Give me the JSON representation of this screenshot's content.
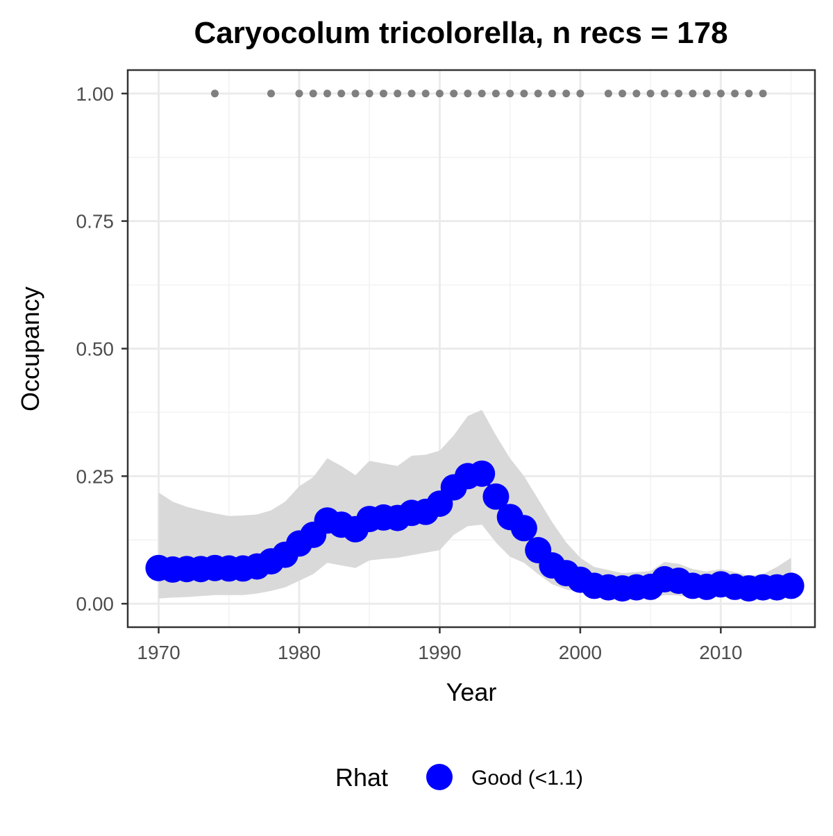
{
  "chart_data": {
    "type": "line",
    "title": "Caryocolum tricolorella, n recs = 178",
    "xlabel": "Year",
    "ylabel": "Occupancy",
    "xlim": [
      1967.8,
      2016.7
    ],
    "ylim": [
      -0.046,
      1.046
    ],
    "x_ticks": [
      1970,
      1980,
      1990,
      2000,
      2010
    ],
    "x_tick_labels": [
      "1970",
      "1980",
      "1990",
      "2000",
      "2010"
    ],
    "y_ticks": [
      0,
      0.25,
      0.5,
      0.75,
      1.0
    ],
    "y_tick_labels": [
      "0.00",
      "0.25",
      "0.50",
      "0.75",
      "1.00"
    ],
    "grid": true,
    "legend_position": "bottom",
    "legend_title": "Rhat",
    "legend_label": "Good (<1.1)",
    "colors": {
      "points": "#0000ff",
      "ribbon": "#d9d9d9",
      "record_points": "#7f7f7f"
    },
    "series": [
      {
        "name": "Good (<1.1)",
        "x": [
          1970,
          1971,
          1972,
          1973,
          1974,
          1975,
          1976,
          1977,
          1978,
          1979,
          1980,
          1981,
          1982,
          1983,
          1984,
          1985,
          1986,
          1987,
          1988,
          1989,
          1990,
          1991,
          1992,
          1993,
          1994,
          1995,
          1996,
          1997,
          1998,
          1999,
          2000,
          2001,
          2002,
          2003,
          2004,
          2005,
          2006,
          2007,
          2008,
          2009,
          2010,
          2011,
          2012,
          2013,
          2014,
          2015
        ],
        "y": [
          0.07,
          0.067,
          0.068,
          0.068,
          0.07,
          0.069,
          0.069,
          0.073,
          0.083,
          0.096,
          0.118,
          0.135,
          0.163,
          0.155,
          0.146,
          0.166,
          0.169,
          0.168,
          0.178,
          0.18,
          0.196,
          0.228,
          0.25,
          0.255,
          0.21,
          0.17,
          0.148,
          0.105,
          0.075,
          0.06,
          0.047,
          0.035,
          0.032,
          0.03,
          0.032,
          0.033,
          0.048,
          0.045,
          0.035,
          0.033,
          0.038,
          0.033,
          0.03,
          0.032,
          0.032,
          0.035
        ],
        "lower": [
          0.01,
          0.012,
          0.013,
          0.015,
          0.017,
          0.017,
          0.017,
          0.02,
          0.025,
          0.032,
          0.045,
          0.058,
          0.08,
          0.075,
          0.07,
          0.085,
          0.088,
          0.09,
          0.095,
          0.1,
          0.105,
          0.135,
          0.152,
          0.155,
          0.12,
          0.092,
          0.08,
          0.058,
          0.038,
          0.028,
          0.022,
          0.016,
          0.013,
          0.011,
          0.011,
          0.011,
          0.017,
          0.016,
          0.012,
          0.011,
          0.013,
          0.011,
          0.01,
          0.01,
          0.011,
          0.012
        ],
        "upper": [
          0.218,
          0.2,
          0.19,
          0.183,
          0.177,
          0.172,
          0.173,
          0.175,
          0.183,
          0.2,
          0.23,
          0.248,
          0.285,
          0.27,
          0.252,
          0.28,
          0.275,
          0.27,
          0.29,
          0.292,
          0.3,
          0.33,
          0.368,
          0.38,
          0.33,
          0.285,
          0.25,
          0.205,
          0.16,
          0.12,
          0.09,
          0.072,
          0.066,
          0.06,
          0.062,
          0.064,
          0.082,
          0.078,
          0.068,
          0.063,
          0.068,
          0.062,
          0.055,
          0.058,
          0.072,
          0.09
        ]
      }
    ],
    "record_years": [
      1974,
      1978,
      1980,
      1981,
      1982,
      1983,
      1984,
      1985,
      1986,
      1987,
      1988,
      1989,
      1990,
      1991,
      1992,
      1993,
      1994,
      1995,
      1996,
      1997,
      1998,
      1999,
      2000,
      2002,
      2003,
      2004,
      2005,
      2006,
      2007,
      2008,
      2009,
      2010,
      2011,
      2012,
      2013
    ],
    "record_value": 1.0
  }
}
